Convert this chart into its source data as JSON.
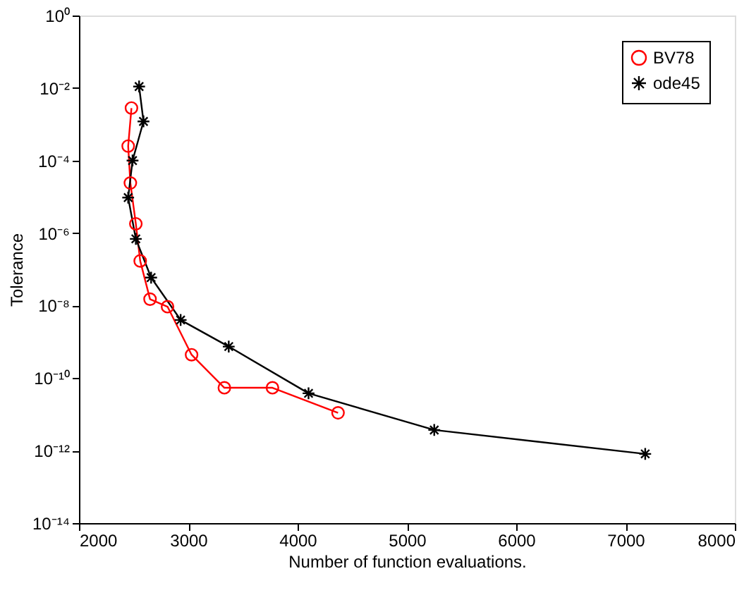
{
  "chart_data": {
    "type": "line",
    "xlabel": "Number of function evaluations.",
    "ylabel": "Tolerance",
    "log": "y",
    "grid": false,
    "legend": "top right",
    "line_style": "solid",
    "xlim": [
      2000,
      8000
    ],
    "xticks": [
      2000,
      3000,
      4000,
      5000,
      6000,
      7000,
      8000
    ],
    "ylim": [
      1e-14,
      1
    ],
    "yticks": [
      {
        "value": 1e-14,
        "label": "10⁻¹⁴"
      },
      {
        "value": 1e-12,
        "label": "10⁻¹²"
      },
      {
        "value": 1e-10,
        "label": "10⁻¹⁰"
      },
      {
        "value": 1e-08,
        "label": "10⁻⁸"
      },
      {
        "value": 1e-06,
        "label": "10⁻⁶"
      },
      {
        "value": 0.0001,
        "label": "10⁻⁴"
      },
      {
        "value": 0.01,
        "label": "10⁻²"
      },
      {
        "value": 1,
        "label": "10⁰"
      }
    ],
    "series": [
      {
        "name": "BV78",
        "color": "#ff0000",
        "marker": "circle",
        "x": [
          2480,
          2450,
          2470,
          2520,
          2560,
          2650,
          2810,
          3030,
          3330,
          3770,
          4370
        ],
        "values": [
          0.0028,
          0.00025,
          2.4e-05,
          1.8e-06,
          1.7e-07,
          1.5e-08,
          9.3e-09,
          4.4e-10,
          5.4e-11,
          5.4e-11,
          1.1e-11
        ]
      },
      {
        "name": "ode45",
        "color": "#000000",
        "marker": "cross",
        "x": [
          2550,
          2590,
          2490,
          2450,
          2520,
          2660,
          2930,
          3370,
          4100,
          5250,
          7180
        ],
        "values": [
          0.011,
          0.0012,
          0.0001,
          9.5e-06,
          6.9e-07,
          5.9e-08,
          4e-09,
          7.4e-10,
          3.8e-11,
          3.7e-12,
          8.1e-13
        ]
      }
    ]
  }
}
